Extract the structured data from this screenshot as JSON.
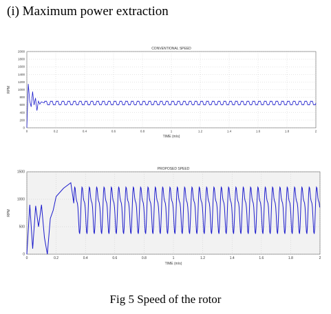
{
  "heading": "(i) Maximum power extraction",
  "caption": "Fig 5 Speed of the rotor",
  "chart_data": [
    {
      "type": "line",
      "title": "CONVENTIONAL SPEED",
      "xlabel": "TIME (m/s)",
      "ylabel": "RPM",
      "xlim": [
        0,
        2
      ],
      "ylim": [
        0,
        2000
      ],
      "xticks": [
        "0",
        "0.2",
        "0.4",
        "0.6",
        "0.8",
        "1",
        "1.2",
        "1.4",
        "1.6",
        "1.8",
        "2"
      ],
      "yticks": [
        "0",
        "200",
        "400",
        "600",
        "800",
        "1000",
        "1200",
        "1400",
        "1600",
        "1800",
        "2000"
      ],
      "grid": true,
      "color": "#1a1acc",
      "x": [
        0,
        0.01,
        0.02,
        0.03,
        0.04,
        0.05,
        0.06,
        0.07,
        0.08,
        0.09,
        0.1,
        0.12,
        0.14,
        0.16,
        0.18,
        0.2,
        0.5,
        1.0,
        1.5,
        2.0
      ],
      "y": [
        0,
        1150,
        700,
        550,
        950,
        600,
        780,
        450,
        700,
        620,
        680,
        650,
        620,
        660,
        620,
        650,
        650,
        650,
        650,
        650
      ]
    },
    {
      "type": "line",
      "title": "PROPOSED SPEED",
      "xlabel": "TIME (m/s)",
      "ylabel": "RPM",
      "xlim": [
        0,
        2
      ],
      "ylim": [
        0,
        1500
      ],
      "xticks": [
        "0",
        "0.2",
        "0.4",
        "0.6",
        "0.8",
        "1",
        "1.2",
        "1.4",
        "1.6",
        "1.8",
        "2"
      ],
      "yticks": [
        "0",
        "500",
        "1000",
        "1500"
      ],
      "grid": true,
      "color": "#1a1acc",
      "x": [
        0,
        0.02,
        0.04,
        0.06,
        0.08,
        0.1,
        0.12,
        0.14,
        0.16,
        0.18,
        0.2,
        0.25,
        0.3,
        0.35,
        0.4,
        1.0,
        1.5,
        2.0
      ],
      "y": [
        0,
        900,
        100,
        880,
        500,
        900,
        300,
        0,
        650,
        800,
        1050,
        1200,
        1300,
        1350,
        1350,
        1350,
        1350,
        1350
      ]
    }
  ]
}
